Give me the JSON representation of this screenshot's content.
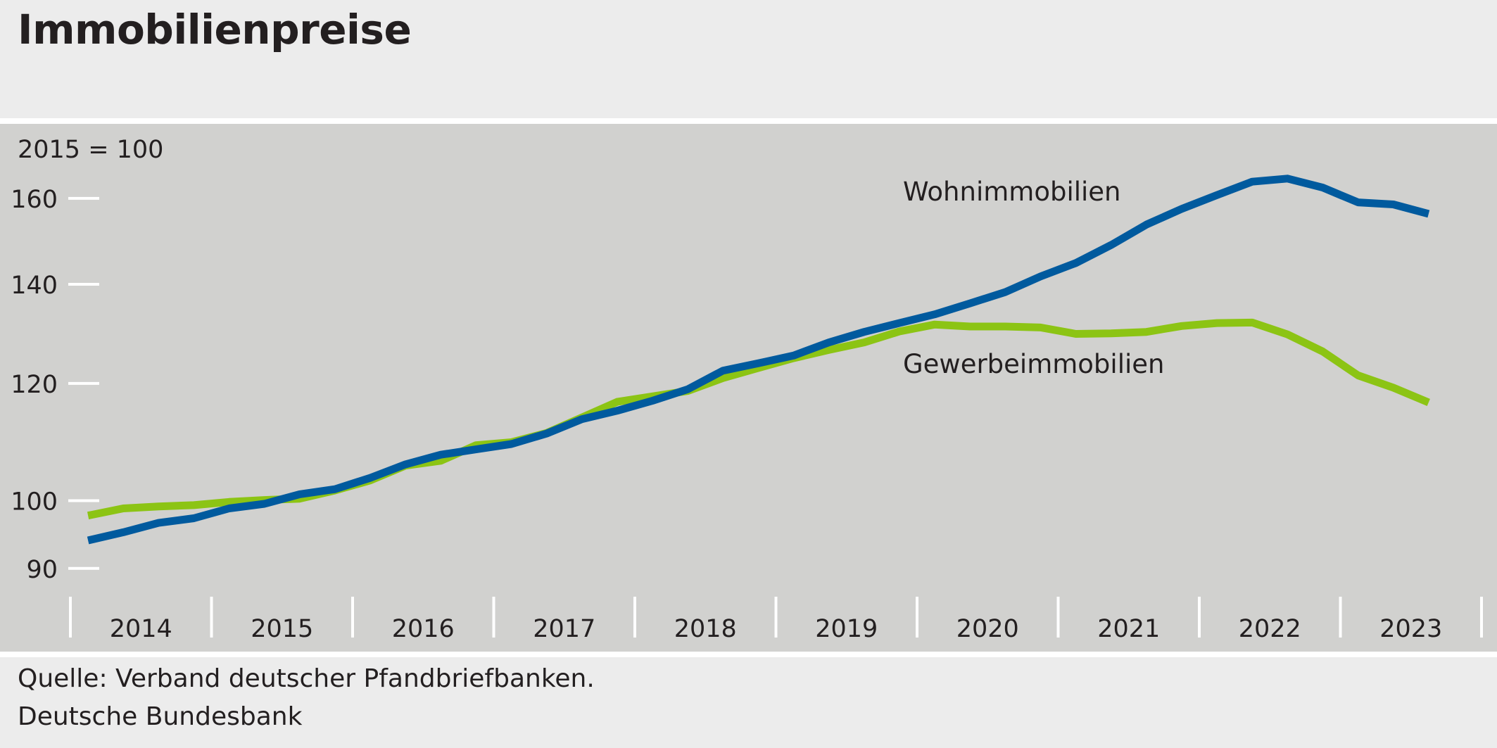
{
  "title": "Immobilienpreise",
  "footer": {
    "source": "Quelle: Verband deutscher Pfandbriefbanken.",
    "publisher": "Deutsche Bundesbank"
  },
  "colors": {
    "background": "#ececec",
    "plot_background": "#d1d1cf",
    "wohn": "#005a9e",
    "gewerbe": "#8cc414",
    "text": "#231f20"
  },
  "chart_data": {
    "type": "line",
    "title": "Immobilienpreise",
    "ylabel": "2015 = 100",
    "xlabel": "",
    "y_scale": "log",
    "ylim": [
      85,
      175
    ],
    "yticks": [
      90,
      100,
      120,
      140,
      160
    ],
    "ytick_labels": [
      "90",
      "100",
      "120",
      "140",
      "160"
    ],
    "xlim": [
      2014.0,
      2024.0
    ],
    "year_labels": [
      "2014",
      "2015",
      "2016",
      "2017",
      "2018",
      "2019",
      "2020",
      "2021",
      "2022",
      "2023"
    ],
    "grid": false,
    "legend": "inline labels next to lines",
    "x": [
      2014.125,
      2014.375,
      2014.625,
      2014.875,
      2015.125,
      2015.375,
      2015.625,
      2015.875,
      2016.125,
      2016.375,
      2016.625,
      2016.875,
      2017.125,
      2017.375,
      2017.625,
      2017.875,
      2018.125,
      2018.375,
      2018.625,
      2018.875,
      2019.125,
      2019.375,
      2019.625,
      2019.875,
      2020.125,
      2020.375,
      2020.625,
      2020.875,
      2021.125,
      2021.375,
      2021.625,
      2021.875,
      2022.125,
      2022.375,
      2022.625,
      2022.875,
      2023.125,
      2023.375,
      2023.625
    ],
    "series": [
      {
        "name": "Wohnimmobilien",
        "label": "Wohnimmobilien",
        "color": "#005a9e",
        "values": [
          94.0,
          95.2,
          96.6,
          97.3,
          98.8,
          99.5,
          101.0,
          101.8,
          103.6,
          105.8,
          107.4,
          108.3,
          109.2,
          111.0,
          113.5,
          115.0,
          116.8,
          118.9,
          122.4,
          123.8,
          125.3,
          127.9,
          130.0,
          131.8,
          133.6,
          135.9,
          138.3,
          141.7,
          144.7,
          148.8,
          153.6,
          157.4,
          160.8,
          164.2,
          165.0,
          162.7,
          159.0,
          158.5,
          156.2
        ]
      },
      {
        "name": "Gewerbeimmobilien",
        "label": "Gewerbeimmobilien",
        "color": "#8cc414",
        "values": [
          97.7,
          98.8,
          99.1,
          99.3,
          99.8,
          100.1,
          100.3,
          101.6,
          103.2,
          105.6,
          106.4,
          109.0,
          109.5,
          111.1,
          113.8,
          116.6,
          117.6,
          118.6,
          121.0,
          122.9,
          124.8,
          126.4,
          127.9,
          130.1,
          131.5,
          131.1,
          131.1,
          130.9,
          129.6,
          129.7,
          130.0,
          131.2,
          131.8,
          131.9,
          129.5,
          126.1,
          121.5,
          119.2,
          116.5
        ]
      }
    ]
  }
}
